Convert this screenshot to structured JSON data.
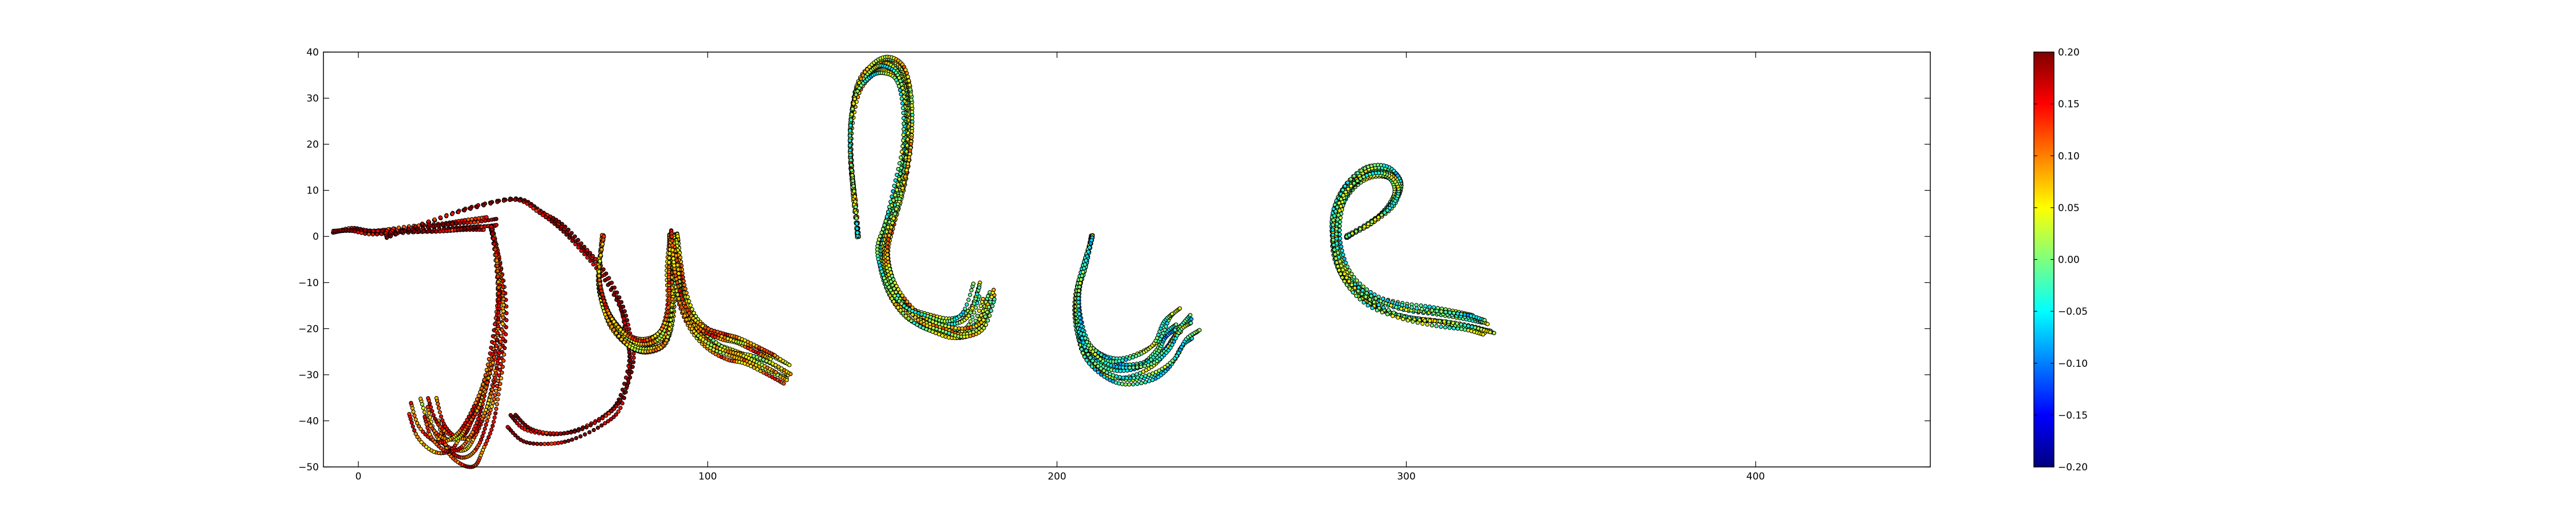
{
  "chart_data": {
    "type": "scatter",
    "title": "",
    "xlabel": "",
    "ylabel": "",
    "xlim": [
      -10,
      450
    ],
    "ylim": [
      -50,
      40
    ],
    "grid": false,
    "x_ticks": [
      0,
      100,
      200,
      300,
      400
    ],
    "y_ticks": [
      40,
      30,
      20,
      10,
      0,
      -10,
      -20,
      -30,
      -40,
      -50
    ],
    "colorbar": {
      "colormap": "jet",
      "vmin": -0.2,
      "vmax": 0.2,
      "ticks": [
        "0.20",
        "0.15",
        "0.10",
        "0.05",
        "0.00",
        "−0.05",
        "−0.10",
        "−0.15",
        "−0.20"
      ],
      "stops": [
        "#00007f",
        "#0000ff",
        "#007fff",
        "#00ffff",
        "#7fff7f",
        "#ffff00",
        "#ff7f00",
        "#ff0000",
        "#7f0000"
      ]
    },
    "marker_edge_color": "#000000",
    "letters": [
      {
        "shape": "j",
        "strokes": [
          {
            "points": [
              [
                -7,
                1
              ],
              [
                -2,
                1.5
              ],
              [
                5,
                1
              ],
              [
                15,
                1.5
              ],
              [
                25,
                2
              ],
              [
                32,
                2.5
              ],
              [
                38,
                3
              ]
            ],
            "copies": 7,
            "jitter": [
              2,
              1.4
            ],
            "color_center": 0.17
          },
          {
            "points": [
              [
                8,
                0
              ],
              [
                20,
                3
              ],
              [
                32,
                6
              ],
              [
                45,
                8
              ],
              [
                52,
                5
              ],
              [
                58,
                2
              ],
              [
                64,
                -3
              ],
              [
                70,
                -8
              ],
              [
                75,
                -15
              ],
              [
                77,
                -22
              ],
              [
                78,
                -28
              ],
              [
                75,
                -36
              ],
              [
                70,
                -40
              ],
              [
                62,
                -43
              ],
              [
                55,
                -44
              ],
              [
                48,
                -43
              ],
              [
                44,
                -40
              ]
            ],
            "copies": 3,
            "jitter": [
              3,
              2
            ],
            "color_center": 0.16
          },
          {
            "points": [
              [
                38,
                2
              ],
              [
                40,
                -5
              ],
              [
                41,
                -14
              ],
              [
                40,
                -24
              ],
              [
                38,
                -32
              ],
              [
                36,
                -38
              ],
              [
                33,
                -43
              ],
              [
                30,
                -46
              ],
              [
                26,
                -46
              ],
              [
                22,
                -43
              ],
              [
                20,
                -38
              ]
            ],
            "copies": 9,
            "jitter": [
              6,
              3
            ],
            "color_center": 0.1
          }
        ]
      },
      {
        "shape": "u",
        "strokes": [
          {
            "points": [
              [
                70,
                0
              ],
              [
                69,
                -8
              ],
              [
                70,
                -14
              ],
              [
                73,
                -19
              ],
              [
                78,
                -23
              ],
              [
                83,
                -24
              ],
              [
                88,
                -22
              ],
              [
                90,
                -16
              ],
              [
                90,
                -8
              ],
              [
                91,
                -2
              ],
              [
                91,
                0
              ],
              [
                92,
                -6
              ],
              [
                93,
                -12
              ],
              [
                96,
                -18
              ],
              [
                101,
                -22
              ],
              [
                107,
                -24
              ],
              [
                112,
                -25
              ],
              [
                118,
                -27
              ],
              [
                123,
                -29
              ]
            ],
            "copies": 10,
            "jitter": [
              3,
              2.5
            ],
            "color_center": 0.07
          }
        ]
      },
      {
        "shape": "l",
        "strokes": [
          {
            "points": [
              [
                143,
                0
              ],
              [
                142,
                8
              ],
              [
                141,
                16
              ],
              [
                141,
                24
              ],
              [
                143,
                32
              ],
              [
                147,
                36
              ],
              [
                151,
                37
              ],
              [
                155,
                35
              ],
              [
                157,
                29
              ],
              [
                157,
                20
              ],
              [
                155,
                11
              ],
              [
                152,
                3
              ],
              [
                150,
                -3
              ],
              [
                151,
                -8
              ],
              [
                154,
                -13
              ],
              [
                159,
                -17
              ],
              [
                165,
                -19
              ],
              [
                171,
                -20
              ],
              [
                176,
                -18
              ],
              [
                179,
                -12
              ]
            ],
            "copies": 12,
            "jitter": [
              3,
              3
            ],
            "color_center": 0.03
          }
        ]
      },
      {
        "shape": "i",
        "strokes": [
          {
            "points": [
              [
                210,
                0
              ],
              [
                208,
                -6
              ],
              [
                206,
                -12
              ],
              [
                206,
                -18
              ],
              [
                208,
                -24
              ],
              [
                213,
                -28
              ],
              [
                219,
                -29
              ],
              [
                226,
                -28
              ],
              [
                231,
                -25
              ],
              [
                234,
                -21
              ],
              [
                237,
                -19
              ]
            ],
            "copies": 11,
            "jitter": [
              2.5,
              2.5
            ],
            "color_center": -0.02
          }
        ]
      },
      {
        "shape": "e",
        "strokes": [
          {
            "points": [
              [
                283,
                0
              ],
              [
                290,
                3
              ],
              [
                296,
                7
              ],
              [
                298,
                11
              ],
              [
                295,
                14
              ],
              [
                289,
                14
              ],
              [
                283,
                10
              ],
              [
                280,
                4
              ],
              [
                280,
                -3
              ],
              [
                283,
                -9
              ],
              [
                290,
                -14
              ],
              [
                300,
                -17
              ],
              [
                310,
                -18
              ],
              [
                318,
                -19
              ],
              [
                323,
                -20
              ]
            ],
            "copies": 13,
            "jitter": [
              2.2,
              2.2
            ],
            "color_center": 0.0
          }
        ]
      }
    ]
  }
}
